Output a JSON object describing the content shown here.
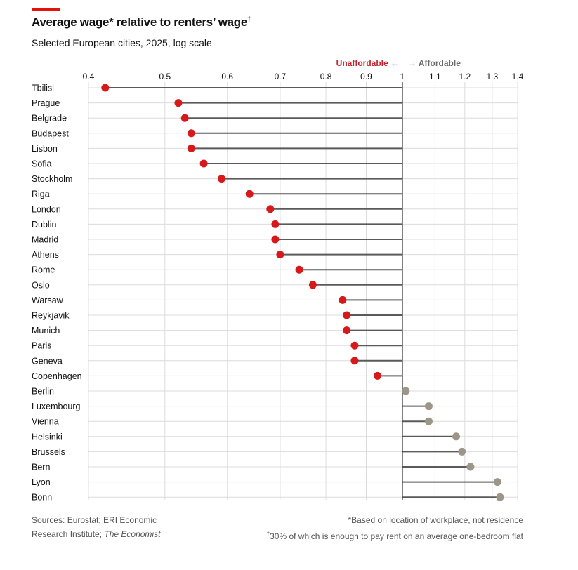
{
  "header": {
    "title": "Average wage* relative to renters’ wage",
    "title_mark": "†",
    "subtitle": "Selected European cities, 2025, log scale"
  },
  "legend": {
    "unaffordable": "Unaffordable ←",
    "affordable": "→ Affordable"
  },
  "colors": {
    "accent": "#e3120b",
    "unaffordable_dot": "#d7191c",
    "affordable_dot": "#9b9687",
    "stem": "#5a5a5a",
    "grid": "#dcdcdc",
    "unaffordable_text": "#c0262d"
  },
  "footer": {
    "sources_line1": "Sources: Eurostat; ERI Economic",
    "sources_line2_prefix": "Research Institute; ",
    "sources_line2_italic": "The Economist",
    "note1": "*Based on location of workplace, not residence",
    "note2_mark": "†",
    "note2": "30% of which is enough to pay rent on an average one-bedroom flat"
  },
  "chart_data": {
    "type": "lollipop",
    "title": "Average wage* relative to renters’ wage†",
    "subtitle": "Selected European cities, 2025, log scale",
    "xscale": "log",
    "xlim": [
      0.4,
      1.4
    ],
    "reference": 1,
    "x_ticks": [
      "0.4",
      "0.5",
      "0.6",
      "0.7",
      "0.8",
      "0.9",
      "1",
      "1.1",
      "1.2",
      "1.3",
      "1.4"
    ],
    "x_tick_values": [
      0.4,
      0.5,
      0.6,
      0.7,
      0.8,
      0.9,
      1,
      1.1,
      1.2,
      1.3,
      1.4
    ],
    "grid": true,
    "legend": [
      "Unaffordable ←",
      "→ Affordable"
    ],
    "categories": [
      "Tbilisi",
      "Prague",
      "Belgrade",
      "Budapest",
      "Lisbon",
      "Sofia",
      "Stockholm",
      "Riga",
      "London",
      "Dublin",
      "Madrid",
      "Athens",
      "Rome",
      "Oslo",
      "Warsaw",
      "Reykjavik",
      "Munich",
      "Paris",
      "Geneva",
      "Copenhagen",
      "Berlin",
      "Luxembourg",
      "Vienna",
      "Helsinki",
      "Brussels",
      "Bern",
      "Lyon",
      "Bonn"
    ],
    "values": [
      0.42,
      0.52,
      0.53,
      0.54,
      0.54,
      0.56,
      0.59,
      0.64,
      0.68,
      0.69,
      0.69,
      0.7,
      0.74,
      0.77,
      0.84,
      0.85,
      0.85,
      0.87,
      0.87,
      0.93,
      1.01,
      1.08,
      1.08,
      1.17,
      1.19,
      1.22,
      1.32,
      1.33
    ]
  }
}
